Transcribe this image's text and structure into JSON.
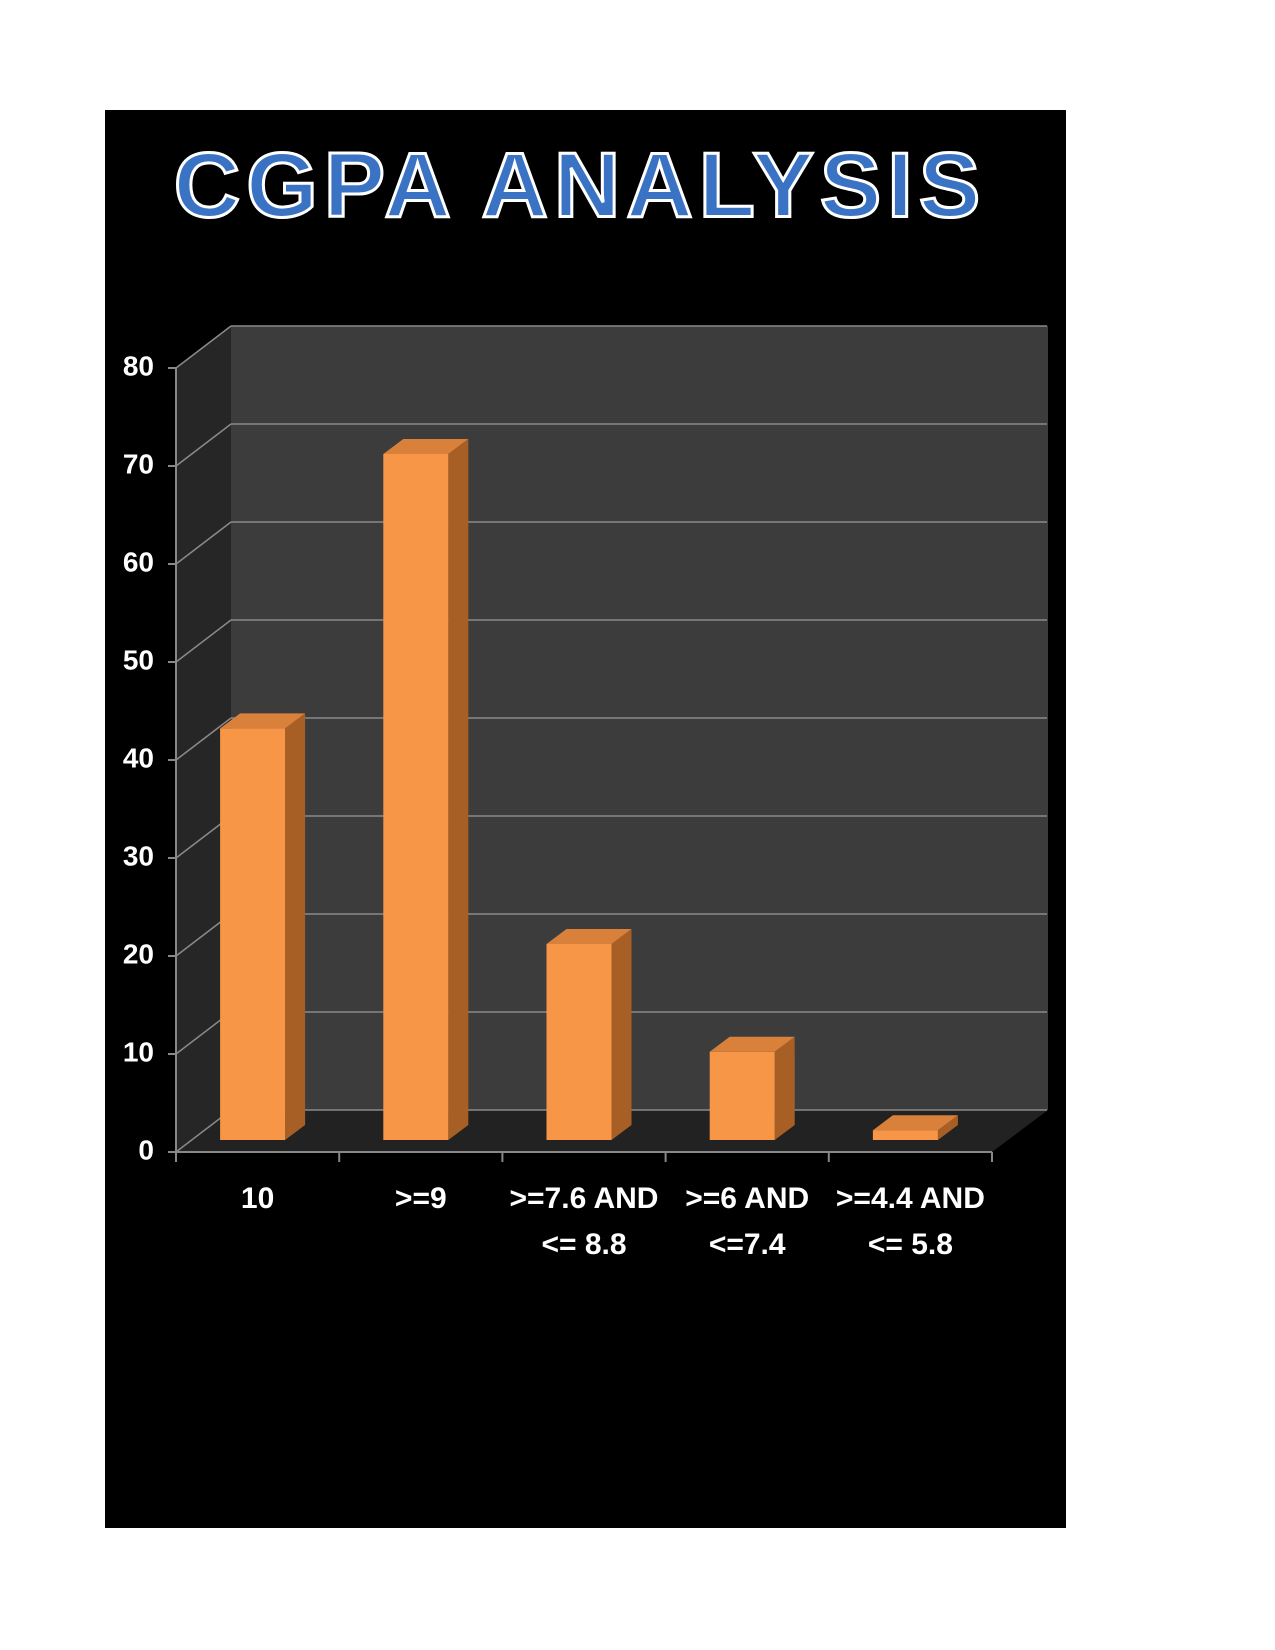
{
  "chart_data": {
    "type": "bar3d",
    "title": "CGPA ANALYSIS",
    "categories": [
      "10",
      ">=9",
      ">=7.6 AND <= 8.8",
      ">=6 AND <=7.4",
      ">=4.4 AND <= 5.8"
    ],
    "values": [
      42,
      70,
      20,
      9,
      1
    ],
    "color": "#f79646",
    "ylim": [
      0,
      80
    ],
    "yticks": [
      0,
      10,
      20,
      30,
      40,
      50,
      60,
      70,
      80
    ],
    "grid": true
  }
}
